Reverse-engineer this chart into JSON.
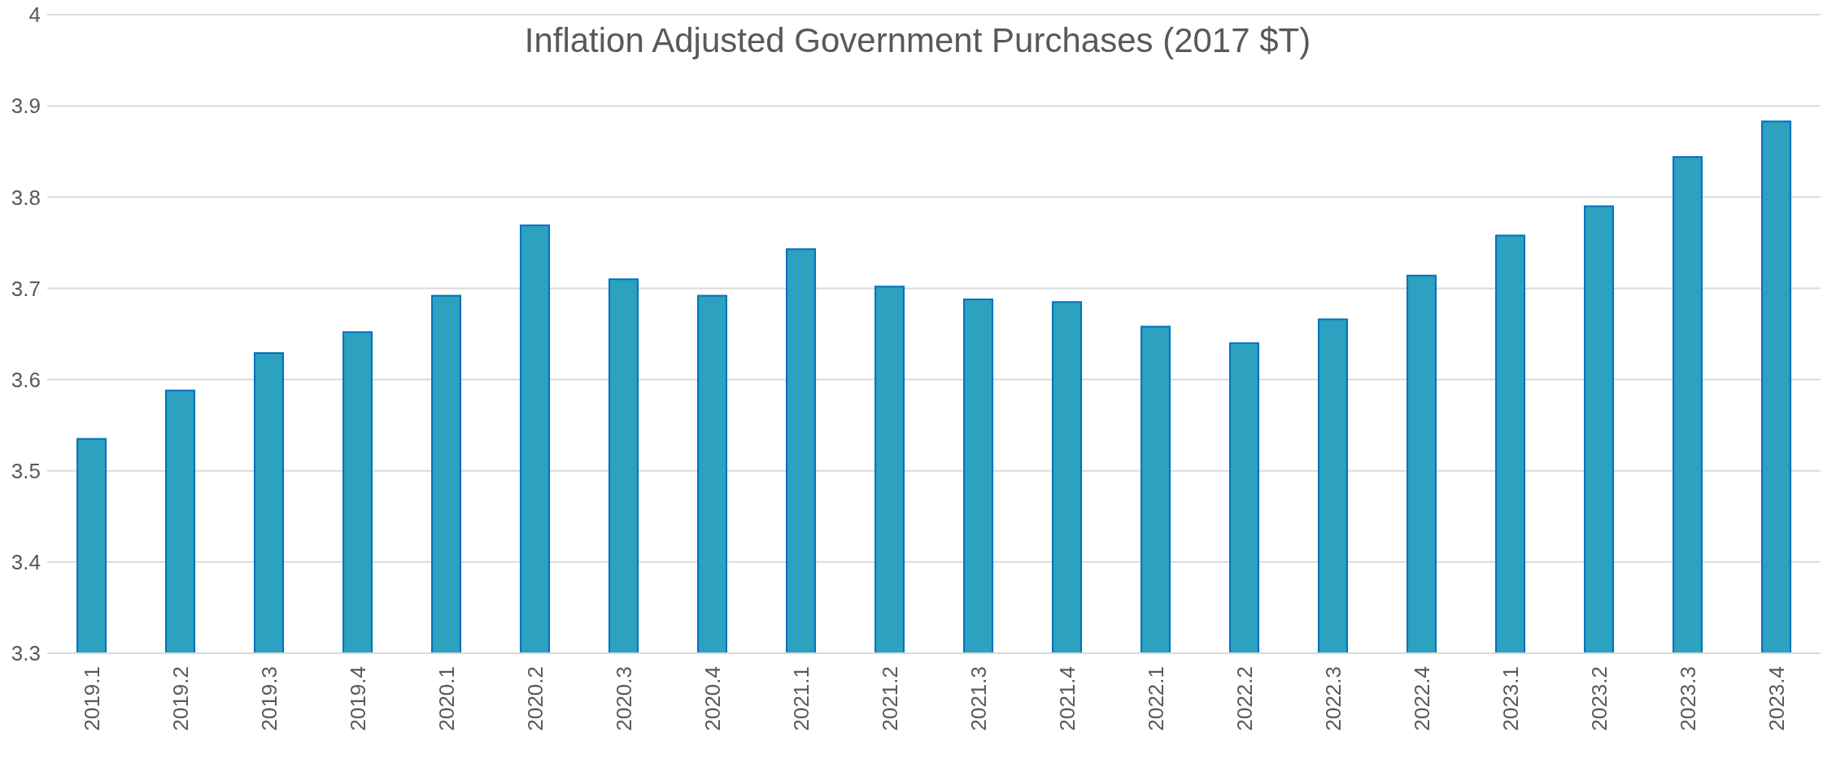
{
  "chart_data": {
    "type": "bar",
    "title": "Inflation Adjusted Government Purchases (2017 $T)",
    "categories": [
      "2019.1",
      "2019.2",
      "2019.3",
      "2019.4",
      "2020.1",
      "2020.2",
      "2020.3",
      "2020.4",
      "2021.1",
      "2021.2",
      "2021.3",
      "2021.4",
      "2022.1",
      "2022.2",
      "2022.3",
      "2022.4",
      "2023.1",
      "2023.2",
      "2023.3",
      "2023.4"
    ],
    "values": [
      3.535,
      3.588,
      3.629,
      3.652,
      3.692,
      3.769,
      3.71,
      3.692,
      3.743,
      3.702,
      3.688,
      3.685,
      3.658,
      3.64,
      3.666,
      3.714,
      3.758,
      3.79,
      3.844,
      3.883
    ],
    "color": "#2ca1c0",
    "ylim": [
      3.3,
      4
    ],
    "yticks": [
      3.3,
      3.4,
      3.5,
      3.6,
      3.7,
      3.8,
      3.9,
      4
    ],
    "grid": "y"
  }
}
